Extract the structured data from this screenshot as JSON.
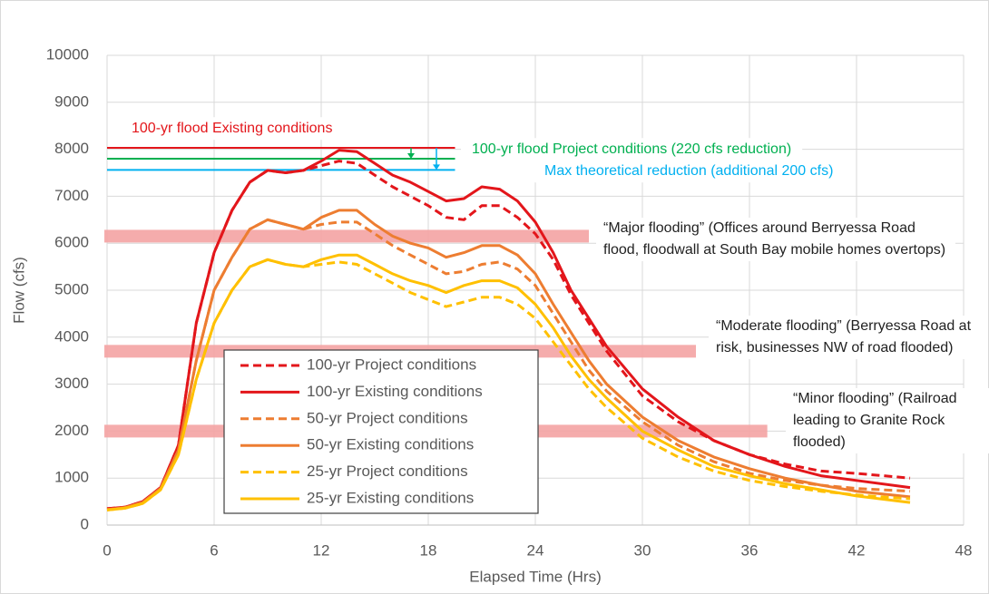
{
  "chart_data": {
    "type": "line",
    "x_label": "Elapsed Time (Hrs)",
    "y_label": "Flow (cfs)",
    "xlim": [
      0,
      48
    ],
    "xticks": [
      0,
      6,
      12,
      18,
      24,
      30,
      36,
      42,
      48
    ],
    "ylim": [
      0,
      10000
    ],
    "yticks": [
      0,
      1000,
      2000,
      3000,
      4000,
      5000,
      6000,
      7000,
      8000,
      9000,
      10000
    ],
    "grid": true,
    "x": [
      0,
      1,
      2,
      3,
      4,
      5,
      6,
      7,
      8,
      9,
      10,
      11,
      12,
      13,
      14,
      15,
      16,
      17,
      18,
      19,
      20,
      21,
      22,
      23,
      24,
      25,
      26,
      27,
      28,
      30,
      32,
      34,
      36,
      38,
      40,
      42,
      45
    ],
    "series": [
      {
        "name": "100-yr Project conditions",
        "color": "#e3161b",
        "dash": true,
        "values": [
          350,
          380,
          500,
          800,
          1700,
          4300,
          5800,
          6700,
          7300,
          7550,
          7500,
          7550,
          7650,
          7750,
          7700,
          7450,
          7200,
          7000,
          6800,
          6550,
          6500,
          6800,
          6800,
          6550,
          6200,
          5650,
          4900,
          4300,
          3700,
          2750,
          2200,
          1800,
          1500,
          1300,
          1150,
          1100,
          1000
        ]
      },
      {
        "name": "100-yr Existing conditions",
        "color": "#e3161b",
        "dash": false,
        "values": [
          350,
          380,
          500,
          800,
          1700,
          4300,
          5800,
          6700,
          7300,
          7550,
          7500,
          7550,
          7750,
          7980,
          7950,
          7700,
          7450,
          7300,
          7100,
          6900,
          6950,
          7200,
          7150,
          6900,
          6450,
          5800,
          5000,
          4400,
          3800,
          2900,
          2300,
          1800,
          1500,
          1250,
          1050,
          950,
          800
        ]
      },
      {
        "name": "50-yr Project conditions",
        "color": "#ed7d31",
        "dash": true,
        "values": [
          330,
          370,
          480,
          780,
          1600,
          3500,
          5000,
          5700,
          6300,
          6500,
          6400,
          6300,
          6400,
          6450,
          6450,
          6200,
          5950,
          5750,
          5550,
          5350,
          5400,
          5550,
          5600,
          5450,
          5100,
          4500,
          3900,
          3300,
          2850,
          2200,
          1700,
          1350,
          1100,
          950,
          850,
          780,
          720
        ]
      },
      {
        "name": "50-yr Existing conditions",
        "color": "#ed7d31",
        "dash": false,
        "values": [
          330,
          370,
          480,
          780,
          1600,
          3500,
          5000,
          5700,
          6300,
          6500,
          6400,
          6300,
          6550,
          6700,
          6700,
          6400,
          6150,
          6000,
          5900,
          5700,
          5800,
          5950,
          5950,
          5750,
          5350,
          4700,
          4100,
          3500,
          3000,
          2300,
          1800,
          1450,
          1200,
          1000,
          850,
          720,
          600
        ]
      },
      {
        "name": "25-yr Project conditions",
        "color": "#ffc000",
        "dash": true,
        "values": [
          320,
          360,
          460,
          750,
          1500,
          3100,
          4300,
          5000,
          5500,
          5650,
          5550,
          5500,
          5550,
          5600,
          5550,
          5350,
          5150,
          4950,
          4800,
          4650,
          4750,
          4850,
          4850,
          4700,
          4400,
          3900,
          3400,
          2900,
          2500,
          1850,
          1450,
          1150,
          950,
          820,
          720,
          640,
          560
        ]
      },
      {
        "name": "25-yr Existing conditions",
        "color": "#ffc000",
        "dash": false,
        "values": [
          320,
          360,
          460,
          750,
          1500,
          3100,
          4300,
          5000,
          5500,
          5650,
          5550,
          5500,
          5650,
          5750,
          5750,
          5550,
          5350,
          5200,
          5100,
          4950,
          5100,
          5200,
          5200,
          5050,
          4700,
          4200,
          3600,
          3100,
          2700,
          2000,
          1600,
          1250,
          1050,
          880,
          750,
          620,
          480
        ]
      }
    ],
    "reference_lines": [
      {
        "label": "100-yr flood Existing conditions",
        "value": 8030,
        "x_end": 19.5,
        "color": "#e3161b"
      },
      {
        "label": "100-yr flood Project conditions (220 cfs reduction)",
        "value": 7800,
        "x_end": 19.5,
        "color": "#00b050"
      },
      {
        "label": "Max theoretical reduction (additional 200 cfs)",
        "value": 7560,
        "x_end": 19.5,
        "color": "#00b0f0"
      }
    ],
    "bands": [
      {
        "label": "“Major flooding” (Offices around Berryessa Road flood, floodwall at South Bay mobile homes overtops)",
        "value": 6150,
        "x_end": 27
      },
      {
        "label": "“Moderate flooding” (Berryessa Road at risk, businesses NW of road flooded)",
        "value": 3700,
        "x_end": 33
      },
      {
        "label": "“Minor flooding” (Railroad leading to Granite Rock flooded)",
        "value": 2000,
        "x_end": 37
      }
    ]
  }
}
